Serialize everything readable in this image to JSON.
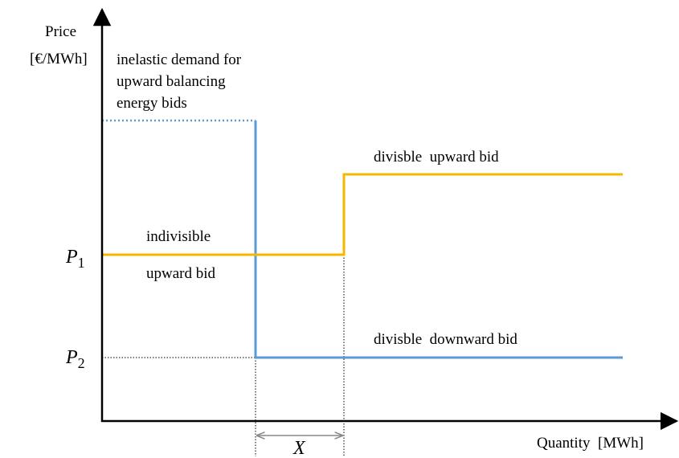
{
  "axes": {
    "y_label": [
      "Price",
      "[€/MWh]"
    ],
    "x_label": "Quantity  [MWh]"
  },
  "annotations": {
    "demand": [
      "inelastic demand for",
      "upward balancing",
      "energy bids"
    ],
    "divisible_upward": "divisble  upward bid",
    "indivisible": [
      "indivisible",
      "upward bid"
    ],
    "divisible_downward": "divisble  downward bid",
    "gap": "X"
  },
  "price_levels": [
    {
      "symbol": "P",
      "subscript": "1"
    },
    {
      "symbol": "P",
      "subscript": "2"
    }
  ]
}
